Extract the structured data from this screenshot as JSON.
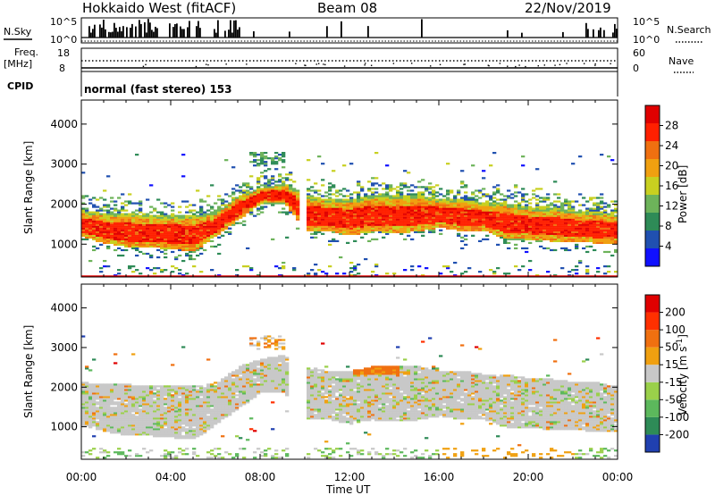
{
  "header": {
    "title": "Hokkaido West (fitACF)",
    "beam": "Beam 08",
    "date": "22/Nov/2019"
  },
  "aux_panels": {
    "nsky_label": "N.Sky",
    "nsky_top": "10^5",
    "nsky_bottom": "10^0",
    "nsearch_label": "N.Search",
    "nsearch_top": "10^5",
    "nsearch_bottom": "10^0",
    "freq_label_1": "Freq.",
    "freq_label_2": "[MHz]",
    "freq_top": "18",
    "freq_bottom": "8",
    "nave_label": "Nave",
    "nave_top": "60",
    "nave_bottom": "0",
    "cpid_label": "CPID",
    "cpid_text": "normal (fast stereo) 153"
  },
  "chart_data": [
    {
      "type": "heatmap",
      "name": "power",
      "ylabel": "Slant Range [km]",
      "xlabel": "Time UT",
      "x_ticks": [
        "00:00",
        "04:00",
        "08:00",
        "12:00",
        "16:00",
        "20:00",
        "00:00"
      ],
      "y_ticks": [
        1000,
        2000,
        3000,
        4000
      ],
      "ylim": [
        180,
        4600
      ],
      "colorbar": {
        "label": "Power [dB]",
        "ticks": [
          "4",
          "8",
          "12",
          "16",
          "20",
          "24",
          "28"
        ],
        "colors": [
          "#1010ff",
          "#2050b0",
          "#2e8b57",
          "#6db35a",
          "#c8d020",
          "#f0a010",
          "#f07010",
          "#ff2000",
          "#e00000"
        ]
      },
      "band": {
        "lower_km": [
          1150,
          1000,
          900,
          900,
          850,
          800,
          1200,
          1600,
          2000,
          2000,
          1300,
          1300,
          1200,
          1300,
          1250,
          1300,
          1400,
          1300,
          1300,
          1100,
          1100,
          1050,
          1050,
          1000,
          1000
        ],
        "upper_km": [
          1800,
          1750,
          1750,
          1700,
          1700,
          1700,
          1800,
          2200,
          2400,
          2500,
          2200,
          2100,
          2100,
          2200,
          2200,
          2200,
          2100,
          2100,
          2000,
          2000,
          1900,
          1900,
          1800,
          1800,
          1700
        ]
      }
    },
    {
      "type": "heatmap",
      "name": "velocity",
      "ylabel": "Slant Range [km]",
      "xlabel": "Time UT",
      "x_ticks": [
        "00:00",
        "04:00",
        "08:00",
        "12:00",
        "16:00",
        "20:00",
        "00:00"
      ],
      "y_ticks": [
        1000,
        2000,
        3000,
        4000
      ],
      "ylim": [
        180,
        4600
      ],
      "colorbar": {
        "label": "Velocity [m s^-1]",
        "ticks": [
          "200",
          "100",
          "50",
          "15",
          "-15",
          "-50",
          "-100",
          "-200"
        ],
        "colors": [
          "#2040b0",
          "#2e8b57",
          "#5cb85c",
          "#9ad04a",
          "#c8c8c8",
          "#f0a010",
          "#f07010",
          "#ff3000",
          "#e00000"
        ]
      }
    }
  ]
}
